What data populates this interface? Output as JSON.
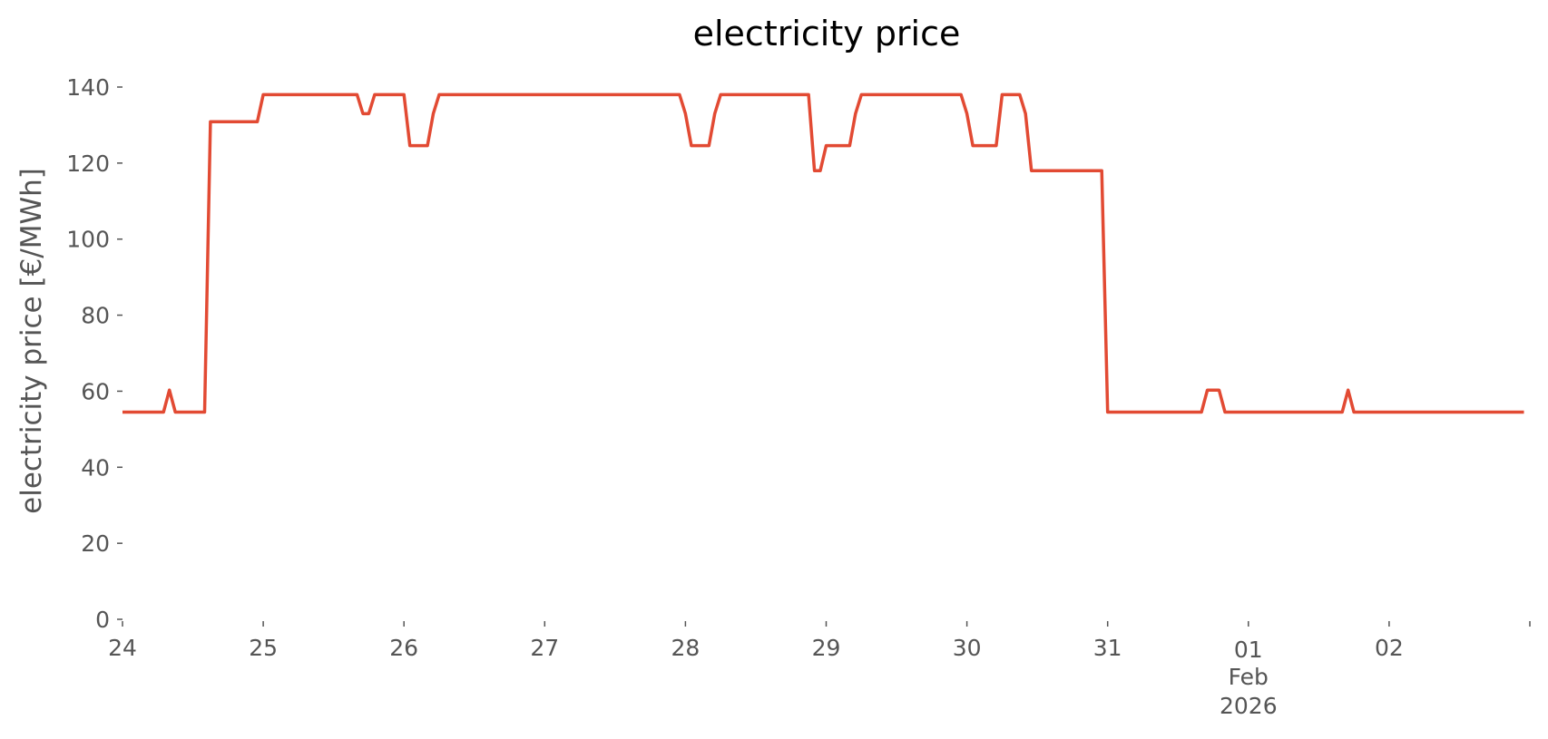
{
  "chart_data": {
    "type": "line",
    "title": "electricity price",
    "xlabel": "",
    "ylabel": "electricity price [€/MWh]",
    "ylim": [
      0,
      140
    ],
    "y_ticks": [
      "0",
      "20",
      "40",
      "60",
      "80",
      "100",
      "120",
      "140"
    ],
    "x_range": [
      "2026-01-24T00:00",
      "2026-02-02T23:00"
    ],
    "x_ticks": [
      {
        "date": "2026-01-24",
        "labels": [
          "24"
        ]
      },
      {
        "date": "2026-01-25",
        "labels": [
          "25"
        ]
      },
      {
        "date": "2026-01-26",
        "labels": [
          "26"
        ]
      },
      {
        "date": "2026-01-27",
        "labels": [
          "27"
        ]
      },
      {
        "date": "2026-01-28",
        "labels": [
          "28"
        ]
      },
      {
        "date": "2026-01-29",
        "labels": [
          "29"
        ]
      },
      {
        "date": "2026-01-30",
        "labels": [
          "30"
        ]
      },
      {
        "date": "2026-01-31",
        "labels": [
          "31"
        ]
      },
      {
        "date": "2026-02-01",
        "labels": [
          "01",
          "Feb",
          "2026"
        ]
      },
      {
        "date": "2026-02-02",
        "labels": [
          "02"
        ]
      },
      {
        "date": "2026-02-03",
        "labels": []
      }
    ],
    "grid": false,
    "series": [
      {
        "color": "#e24a33",
        "x": [
          "2026-01-24T00:00",
          "2026-01-24T07:00",
          "2026-01-24T08:00",
          "2026-01-24T09:00",
          "2026-01-24T14:00",
          "2026-01-24T15:00",
          "2026-01-24T23:00",
          "2026-01-25T00:00",
          "2026-01-25T16:00",
          "2026-01-25T17:00",
          "2026-01-25T18:00",
          "2026-01-25T19:00",
          "2026-01-26T00:00",
          "2026-01-26T01:00",
          "2026-01-26T04:00",
          "2026-01-26T05:00",
          "2026-01-26T06:00",
          "2026-01-27T23:00",
          "2026-01-28T00:00",
          "2026-01-28T01:00",
          "2026-01-28T04:00",
          "2026-01-28T05:00",
          "2026-01-28T06:00",
          "2026-01-28T21:00",
          "2026-01-28T22:00",
          "2026-01-28T23:00",
          "2026-01-29T00:00",
          "2026-01-29T04:00",
          "2026-01-29T05:00",
          "2026-01-29T06:00",
          "2026-01-29T23:00",
          "2026-01-30T00:00",
          "2026-01-30T01:00",
          "2026-01-30T05:00",
          "2026-01-30T06:00",
          "2026-01-30T09:00",
          "2026-01-30T10:00",
          "2026-01-30T11:00",
          "2026-01-30T23:00",
          "2026-01-31T00:00",
          "2026-01-31T16:00",
          "2026-01-31T17:00",
          "2026-01-31T19:00",
          "2026-01-31T20:00",
          "2026-02-01T16:00",
          "2026-02-01T17:00",
          "2026-02-01T18:00",
          "2026-02-02T23:00"
        ],
        "values": [
          54.5,
          54.5,
          60.3,
          54.5,
          54.5,
          130.9,
          130.9,
          138.0,
          138.0,
          133.0,
          133.0,
          138.0,
          138.0,
          124.6,
          124.6,
          133.0,
          138.0,
          138.0,
          133.0,
          124.6,
          124.6,
          133.0,
          138.0,
          138.0,
          118.0,
          118.0,
          124.6,
          124.6,
          133.0,
          138.0,
          138.0,
          133.0,
          124.6,
          124.6,
          138.0,
          138.0,
          133.0,
          118.0,
          118.0,
          54.5,
          54.5,
          60.3,
          60.3,
          54.5,
          54.5,
          60.3,
          54.5,
          54.5
        ]
      }
    ]
  }
}
